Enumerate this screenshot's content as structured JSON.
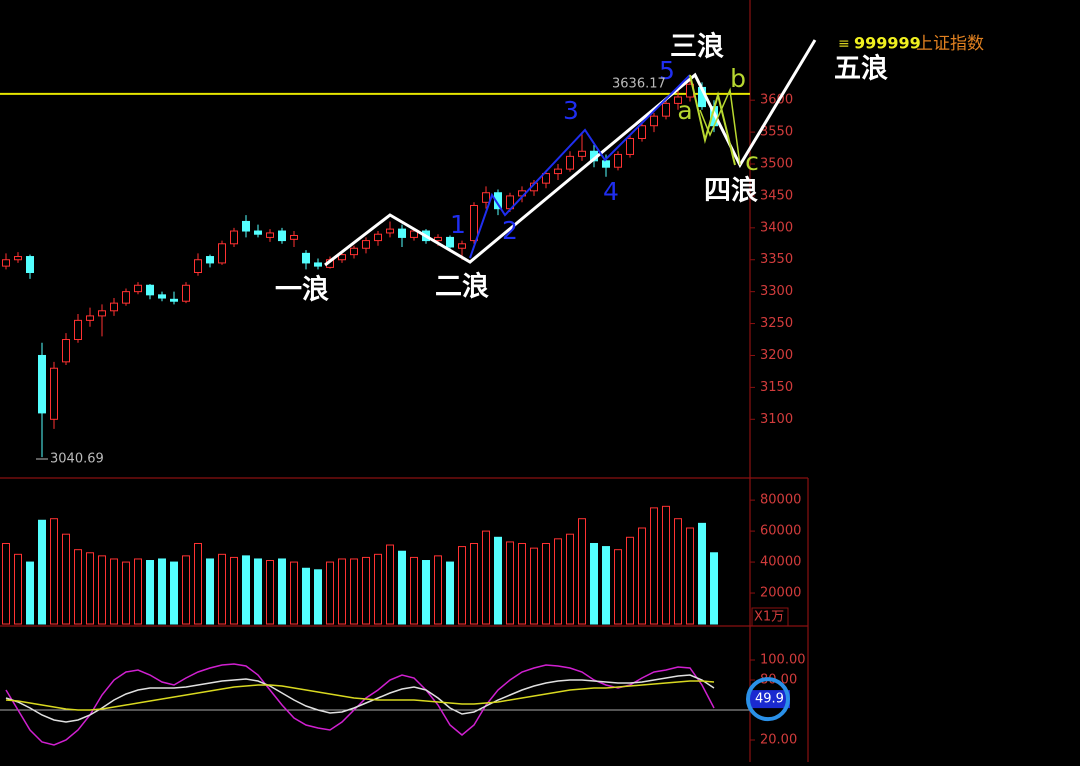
{
  "chart_data": [
    {
      "type": "candlestick",
      "symbol": "999999",
      "name": "上证指数",
      "high_label": 3636.17,
      "low_label": 3040.69,
      "up_color": "#ff3232",
      "down_color": "#54ffff",
      "ref_line": 3610,
      "ref_color": "#e6e600",
      "ylim": [
        3008,
        3757
      ],
      "yticks": [
        3100,
        3150,
        3200,
        3250,
        3300,
        3350,
        3400,
        3450,
        3500,
        3550,
        3600
      ],
      "waves": [
        "一浪",
        "二浪",
        "三浪",
        "四浪",
        "五浪"
      ],
      "sub_waves": [
        "1",
        "2",
        "3",
        "4",
        "5"
      ],
      "corrections": [
        "a",
        "b",
        "c"
      ],
      "candles": [
        [
          3340,
          3360,
          3335,
          3350
        ],
        [
          3350,
          3362,
          3345,
          3355
        ],
        [
          3355,
          3358,
          3320,
          3330
        ],
        [
          3200,
          3220,
          3040.69,
          3110
        ],
        [
          3100,
          3190,
          3085,
          3180
        ],
        [
          3190,
          3235,
          3185,
          3225
        ],
        [
          3225,
          3265,
          3220,
          3255
        ],
        [
          3255,
          3275,
          3245,
          3262
        ],
        [
          3262,
          3280,
          3230,
          3270
        ],
        [
          3270,
          3290,
          3262,
          3282
        ],
        [
          3282,
          3305,
          3278,
          3300
        ],
        [
          3300,
          3315,
          3296,
          3310
        ],
        [
          3310,
          3312,
          3288,
          3295
        ],
        [
          3295,
          3300,
          3285,
          3290
        ],
        [
          3288,
          3300,
          3280,
          3285
        ],
        [
          3285,
          3315,
          3282,
          3310
        ],
        [
          3330,
          3360,
          3325,
          3350
        ],
        [
          3355,
          3358,
          3338,
          3345
        ],
        [
          3345,
          3380,
          3342,
          3375
        ],
        [
          3375,
          3400,
          3370,
          3395
        ],
        [
          3410,
          3420,
          3385,
          3395
        ],
        [
          3395,
          3405,
          3385,
          3390
        ],
        [
          3385,
          3398,
          3378,
          3392
        ],
        [
          3395,
          3400,
          3375,
          3380
        ],
        [
          3382,
          3395,
          3370,
          3388
        ],
        [
          3360,
          3365,
          3335,
          3345
        ],
        [
          3345,
          3352,
          3335,
          3340
        ],
        [
          3338,
          3355,
          3336,
          3350
        ],
        [
          3350,
          3362,
          3345,
          3358
        ],
        [
          3358,
          3372,
          3352,
          3368
        ],
        [
          3368,
          3385,
          3360,
          3380
        ],
        [
          3380,
          3395,
          3372,
          3390
        ],
        [
          3392,
          3410,
          3385,
          3398
        ],
        [
          3398,
          3405,
          3370,
          3385
        ],
        [
          3385,
          3400,
          3380,
          3395
        ],
        [
          3395,
          3398,
          3375,
          3380
        ],
        [
          3380,
          3390,
          3372,
          3385
        ],
        [
          3385,
          3388,
          3365,
          3370
        ],
        [
          3368,
          3380,
          3350,
          3375
        ],
        [
          3380,
          3440,
          3375,
          3435
        ],
        [
          3440,
          3465,
          3430,
          3455
        ],
        [
          3455,
          3460,
          3420,
          3430
        ],
        [
          3430,
          3455,
          3425,
          3450
        ],
        [
          3450,
          3465,
          3440,
          3458
        ],
        [
          3458,
          3475,
          3450,
          3470
        ],
        [
          3470,
          3490,
          3462,
          3485
        ],
        [
          3485,
          3500,
          3475,
          3492
        ],
        [
          3492,
          3520,
          3488,
          3512
        ],
        [
          3512,
          3550,
          3505,
          3520
        ],
        [
          3520,
          3530,
          3495,
          3505
        ],
        [
          3505,
          3515,
          3480,
          3495
        ],
        [
          3495,
          3520,
          3490,
          3515
        ],
        [
          3515,
          3545,
          3510,
          3540
        ],
        [
          3540,
          3565,
          3535,
          3560
        ],
        [
          3560,
          3580,
          3550,
          3575
        ],
        [
          3575,
          3600,
          3570,
          3595
        ],
        [
          3595,
          3615,
          3585,
          3605
        ],
        [
          3605,
          3636.17,
          3598,
          3625
        ],
        [
          3620,
          3628,
          3585,
          3590
        ],
        [
          3590,
          3600,
          3550,
          3560
        ]
      ]
    },
    {
      "type": "bar",
      "unit_label": "X1万",
      "ylim": [
        0,
        93000
      ],
      "yticks": [
        20000,
        40000,
        60000,
        80000
      ],
      "values": [
        52000,
        45000,
        40000,
        67000,
        68000,
        58000,
        48000,
        46000,
        44000,
        42000,
        40000,
        42000,
        41000,
        42000,
        40000,
        44000,
        52000,
        42000,
        45000,
        43000,
        44000,
        42000,
        41000,
        42000,
        40000,
        36000,
        35000,
        40000,
        42000,
        42000,
        43000,
        45000,
        51000,
        47000,
        43000,
        41000,
        44000,
        40000,
        50000,
        52000,
        60000,
        56000,
        53000,
        52000,
        49000,
        52000,
        55000,
        58000,
        68000,
        52000,
        50000,
        48000,
        56000,
        62000,
        75000,
        76000,
        68000,
        62000,
        65000,
        46000
      ]
    },
    {
      "type": "line",
      "ylim": [
        -2,
        130
      ],
      "yticks": [
        {
          "value": 20,
          "label": "20.00"
        },
        {
          "value": 80,
          "label": "80.00"
        },
        {
          "value": 100,
          "label": "100.00"
        }
      ],
      "ref_line": 50,
      "current_value": 49.9,
      "series": [
        {
          "color": "#d020d0",
          "values": [
            70,
            50,
            30,
            18,
            15,
            20,
            30,
            45,
            65,
            80,
            88,
            90,
            85,
            78,
            75,
            82,
            88,
            92,
            95,
            96,
            94,
            85,
            70,
            55,
            42,
            35,
            32,
            30,
            38,
            50,
            62,
            70,
            80,
            85,
            82,
            70,
            55,
            35,
            25,
            35,
            55,
            70,
            80,
            88,
            92,
            95,
            94,
            92,
            88,
            80,
            75,
            72,
            75,
            82,
            88,
            90,
            93,
            92,
            75,
            52
          ]
        },
        {
          "color": "#e0e0e0",
          "values": [
            62,
            58,
            52,
            45,
            40,
            38,
            40,
            45,
            52,
            60,
            66,
            70,
            72,
            72,
            72,
            73,
            75,
            77,
            79,
            80,
            81,
            79,
            74,
            67,
            60,
            54,
            50,
            47,
            48,
            52,
            57,
            62,
            67,
            71,
            73,
            70,
            62,
            52,
            46,
            48,
            54,
            60,
            65,
            70,
            74,
            77,
            79,
            80,
            80,
            79,
            78,
            77,
            77,
            78,
            80,
            82,
            84,
            85,
            80,
            72
          ]
        },
        {
          "color": "#d8d820",
          "values": [
            60,
            59,
            57,
            55,
            53,
            51,
            50,
            50,
            51,
            53,
            55,
            57,
            59,
            61,
            63,
            65,
            67,
            69,
            71,
            73,
            74,
            75,
            75,
            74,
            72,
            70,
            68,
            66,
            64,
            62,
            61,
            60,
            60,
            60,
            60,
            59,
            58,
            57,
            56,
            56,
            57,
            58,
            60,
            62,
            64,
            66,
            68,
            70,
            71,
            72,
            72,
            73,
            74,
            75,
            76,
            77,
            78,
            79,
            79,
            78
          ]
        }
      ]
    }
  ]
}
